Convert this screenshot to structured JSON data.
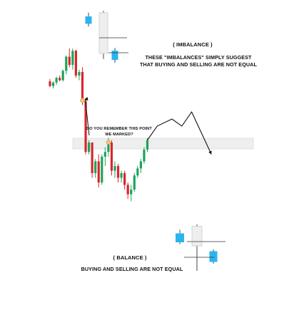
{
  "colors": {
    "bull_candle": "#1fa35a",
    "bear_candle": "#d8262c",
    "illustration_bull": "#2ab4ee",
    "illustration_bear": "#eeeeee",
    "zone": "#eeeeee",
    "marker": "#f3c67a"
  },
  "annotations": {
    "imbalance_title": "( IMBALANCE )",
    "imbalance_line1": "THESE \"IMBALANCES\" SIMPLY SUGGEST",
    "imbalance_line2": "THAT BUYING AND SELLING ARE NOT EQUAL",
    "remember_line1": "DO YOU REMEMBER THIS POINT",
    "remember_line2": "WE MARKED?",
    "balance_title": "( BALANCE )",
    "balance_line1": "BUYING AND SELLING ARE NOT EQUAL"
  },
  "chart_data": [
    {
      "type": "candlestick",
      "role": "main",
      "candles": [
        {
          "o": 52,
          "h": 54,
          "l": 47,
          "c": 48
        },
        {
          "o": 48,
          "h": 52,
          "l": 46,
          "c": 51
        },
        {
          "o": 51,
          "h": 56,
          "l": 49,
          "c": 55
        },
        {
          "o": 55,
          "h": 57,
          "l": 52,
          "c": 53
        },
        {
          "o": 53,
          "h": 62,
          "l": 52,
          "c": 61
        },
        {
          "o": 61,
          "h": 74,
          "l": 58,
          "c": 73
        },
        {
          "o": 73,
          "h": 80,
          "l": 64,
          "c": 66
        },
        {
          "o": 66,
          "h": 80,
          "l": 62,
          "c": 78
        },
        {
          "o": 78,
          "h": 79,
          "l": 55,
          "c": 57
        },
        {
          "o": 57,
          "h": 62,
          "l": 53,
          "c": 60
        },
        {
          "o": 60,
          "h": 64,
          "l": 32,
          "c": 35
        },
        {
          "o": 35,
          "h": 38,
          "l": -10,
          "c": -8
        },
        {
          "o": -8,
          "h": 2,
          "l": -10,
          "c": 0
        },
        {
          "o": 0,
          "h": 0,
          "l": -30,
          "c": -26
        },
        {
          "o": -26,
          "h": -14,
          "l": -30,
          "c": -16
        },
        {
          "o": -16,
          "h": -10,
          "l": -38,
          "c": -34
        },
        {
          "o": -34,
          "h": -10,
          "l": -36,
          "c": -12
        },
        {
          "o": -12,
          "h": -4,
          "l": -20,
          "c": -8
        },
        {
          "o": -8,
          "h": 4,
          "l": -12,
          "c": 0
        },
        {
          "o": 0,
          "h": 2,
          "l": -28,
          "c": -24
        },
        {
          "o": -24,
          "h": -16,
          "l": -30,
          "c": -20
        },
        {
          "o": -20,
          "h": -18,
          "l": -34,
          "c": -30
        },
        {
          "o": -30,
          "h": -24,
          "l": -34,
          "c": -26
        },
        {
          "o": -26,
          "h": -24,
          "l": -40,
          "c": -36
        },
        {
          "o": -36,
          "h": -34,
          "l": -48,
          "c": -44
        },
        {
          "o": -44,
          "h": -36,
          "l": -50,
          "c": -40
        },
        {
          "o": -40,
          "h": -26,
          "l": -42,
          "c": -28
        },
        {
          "o": -28,
          "h": -20,
          "l": -30,
          "c": -22
        },
        {
          "o": -22,
          "h": -14,
          "l": -26,
          "c": -16
        },
        {
          "o": -16,
          "h": -4,
          "l": -18,
          "c": -6
        },
        {
          "o": -6,
          "h": 4,
          "l": -8,
          "c": 2
        }
      ],
      "projection": [
        [
          2,
          0
        ],
        [
          14,
          2
        ],
        [
          20,
          5
        ],
        [
          14,
          7
        ],
        [
          26,
          9
        ],
        [
          -10,
          13
        ]
      ],
      "zone": {
        "from": 24,
        "to": 34
      }
    },
    {
      "type": "candlestick",
      "role": "imbalance-illustration",
      "candles": [
        {
          "o": 40,
          "h": 44,
          "l": 29,
          "c": 32
        },
        {
          "o": 0,
          "h": 46,
          "l": -6,
          "c": 44
        },
        {
          "o": 3,
          "h": 6,
          "l": -10,
          "c": -7
        }
      ]
    },
    {
      "type": "candlestick",
      "role": "balance-illustration",
      "candles": [
        {
          "o": 14,
          "h": 18,
          "l": 2,
          "c": 4
        },
        {
          "o": 0,
          "h": 24,
          "l": -28,
          "c": 22
        },
        {
          "o": -6,
          "h": -4,
          "l": -20,
          "c": -18
        }
      ]
    }
  ]
}
